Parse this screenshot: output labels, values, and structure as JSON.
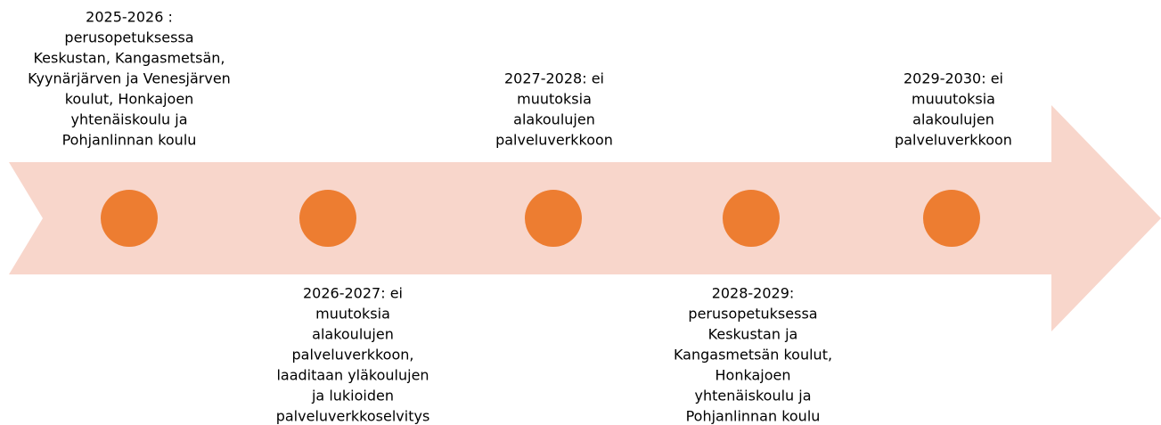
{
  "milestones": [
    {
      "lines": [
        "2025-2026 :",
        "perusopetuksessa",
        "Keskustan, Kangasmetsän,",
        "Kyynärjärven ja Venesjärven",
        "koulut, Honkajoen",
        "yhtenäiskoulu ja",
        "Pohjanlinnan koulu"
      ]
    },
    {
      "lines": [
        "2026-2027: ei",
        "muutoksia",
        "alakoulujen",
        "palveluverkkoon,",
        "laaditaan yläkoulujen",
        "ja lukioiden",
        "palveluverkkoselvitys"
      ]
    },
    {
      "lines": [
        "2027-2028: ei",
        "muutoksia",
        "alakoulujen",
        "palveluverkkoon"
      ]
    },
    {
      "lines": [
        "2028-2029:",
        "perusopetuksessa",
        "Keskustan ja",
        "Kangasmetsän koulut,",
        "Honkajoen",
        "yhtenäiskoulu ja",
        "Pohjanlinnan koulu"
      ]
    },
    {
      "lines": [
        "2029-2030: ei",
        "muuutoksia",
        "alakoulujen",
        "palveluverkkoon"
      ]
    }
  ]
}
